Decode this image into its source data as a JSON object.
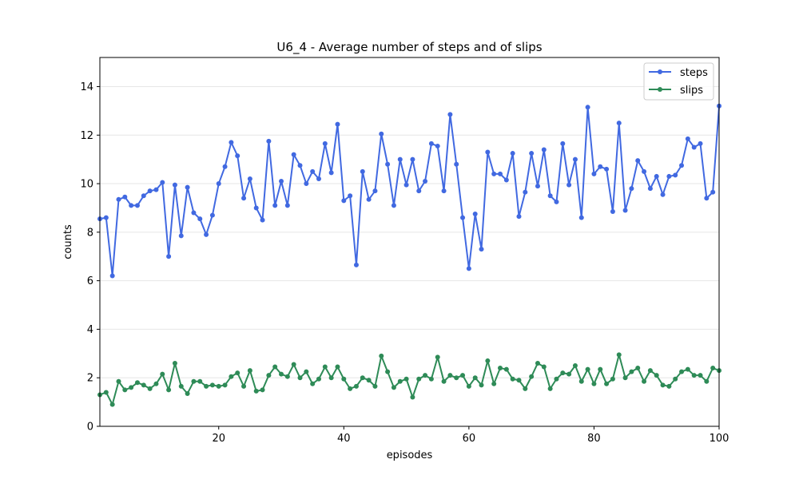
{
  "chart_data": {
    "type": "line",
    "title": "U6_4 - Average number of steps and of slips",
    "xlabel": "episodes",
    "ylabel": "counts",
    "xlim": [
      1,
      100
    ],
    "ylim": [
      0,
      15.2
    ],
    "xticks": [
      20,
      40,
      60,
      80,
      100
    ],
    "yticks": [
      0,
      2,
      4,
      6,
      8,
      10,
      12,
      14
    ],
    "grid": "horizontal",
    "legend_position": "top-right",
    "x": [
      1,
      2,
      3,
      4,
      5,
      6,
      7,
      8,
      9,
      10,
      11,
      12,
      13,
      14,
      15,
      16,
      17,
      18,
      19,
      20,
      21,
      22,
      23,
      24,
      25,
      26,
      27,
      28,
      29,
      30,
      31,
      32,
      33,
      34,
      35,
      36,
      37,
      38,
      39,
      40,
      41,
      42,
      43,
      44,
      45,
      46,
      47,
      48,
      49,
      50,
      51,
      52,
      53,
      54,
      55,
      56,
      57,
      58,
      59,
      60,
      61,
      62,
      63,
      64,
      65,
      66,
      67,
      68,
      69,
      70,
      71,
      72,
      73,
      74,
      75,
      76,
      77,
      78,
      79,
      80,
      81,
      82,
      83,
      84,
      85,
      86,
      87,
      88,
      89,
      90,
      91,
      92,
      93,
      94,
      95,
      96,
      97,
      98,
      99,
      100
    ],
    "series": [
      {
        "name": "steps",
        "color": "#4169e1",
        "values": [
          8.55,
          8.6,
          6.2,
          9.35,
          9.45,
          9.1,
          9.1,
          9.5,
          9.7,
          9.75,
          10.05,
          7.0,
          9.95,
          7.85,
          9.85,
          8.8,
          8.55,
          7.9,
          8.7,
          10.0,
          10.7,
          11.7,
          11.15,
          9.4,
          10.2,
          9.0,
          8.5,
          11.75,
          9.1,
          10.1,
          9.1,
          11.2,
          10.75,
          10.0,
          10.5,
          10.2,
          11.65,
          10.45,
          12.45,
          9.3,
          9.5,
          6.65,
          10.5,
          9.35,
          9.7,
          12.05,
          10.8,
          9.1,
          11.0,
          9.95,
          11.0,
          9.7,
          10.1,
          11.65,
          11.55,
          9.7,
          12.85,
          10.8,
          8.6,
          6.5,
          8.75,
          7.3,
          11.3,
          10.4,
          10.4,
          10.15,
          11.25,
          8.65,
          9.65,
          11.25,
          9.9,
          11.4,
          9.5,
          9.25,
          11.65,
          9.95,
          11.0,
          8.6,
          13.15,
          10.4,
          10.7,
          10.6,
          8.85,
          12.5,
          8.9,
          9.8,
          10.95,
          10.5,
          9.8,
          10.3,
          9.55,
          10.3,
          10.35,
          10.75,
          11.85,
          11.5,
          11.65,
          9.4,
          9.65,
          13.2
        ]
      },
      {
        "name": "slips",
        "color": "#2e8b57",
        "values": [
          1.3,
          1.4,
          0.9,
          1.85,
          1.5,
          1.6,
          1.8,
          1.7,
          1.55,
          1.75,
          2.15,
          1.5,
          2.6,
          1.65,
          1.35,
          1.85,
          1.85,
          1.65,
          1.7,
          1.65,
          1.7,
          2.05,
          2.2,
          1.65,
          2.3,
          1.45,
          1.5,
          2.1,
          2.45,
          2.15,
          2.05,
          2.55,
          2.0,
          2.25,
          1.75,
          1.95,
          2.45,
          2.0,
          2.45,
          1.95,
          1.55,
          1.65,
          2.0,
          1.9,
          1.65,
          2.9,
          2.25,
          1.6,
          1.85,
          1.95,
          1.2,
          1.95,
          2.1,
          1.95,
          2.85,
          1.85,
          2.1,
          2.0,
          2.1,
          1.65,
          2.0,
          1.7,
          2.7,
          1.75,
          2.4,
          2.35,
          1.95,
          1.9,
          1.55,
          2.05,
          2.6,
          2.45,
          1.55,
          1.95,
          2.2,
          2.15,
          2.5,
          1.85,
          2.35,
          1.75,
          2.35,
          1.75,
          1.95,
          2.95,
          2.0,
          2.25,
          2.4,
          1.85,
          2.3,
          2.1,
          1.7,
          1.65,
          1.95,
          2.25,
          2.35,
          2.1,
          2.1,
          1.85,
          2.4,
          2.3
        ]
      }
    ]
  }
}
